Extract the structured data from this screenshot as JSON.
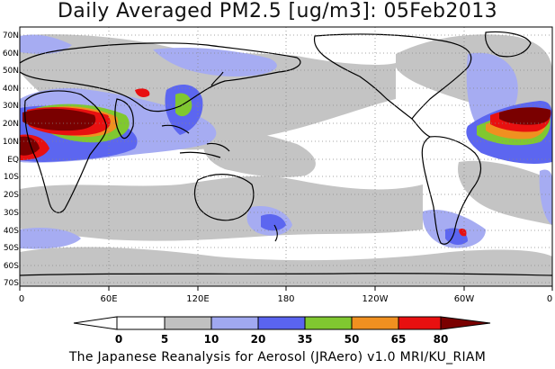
{
  "title": "Daily Averaged PM2.5 [ug/m3]: 05Feb2013",
  "footer": "The Japanese Reanalysis for Aerosol (JRAero) v1.0 MRI/KU_RIAM",
  "map": {
    "lat_labels": [
      "70N",
      "60N",
      "50N",
      "40N",
      "30N",
      "20N",
      "10N",
      "EQ",
      "10S",
      "20S",
      "30S",
      "40S",
      "50S",
      "60S",
      "70S"
    ],
    "lon_labels": [
      "0",
      "60E",
      "120E",
      "180",
      "120W",
      "60W",
      "0"
    ],
    "ocean_color": "#ffffff",
    "coast_color": "#000000",
    "grid_style": "dotted"
  },
  "colorbar": {
    "levels": [
      "0",
      "5",
      "10",
      "20",
      "35",
      "50",
      "65",
      "80"
    ],
    "colors": [
      "#ffffff",
      "#c0c0c0",
      "#a0a8f0",
      "#5a64f0",
      "#80c830",
      "#f09020",
      "#e81010",
      "#7a0000"
    ]
  }
}
